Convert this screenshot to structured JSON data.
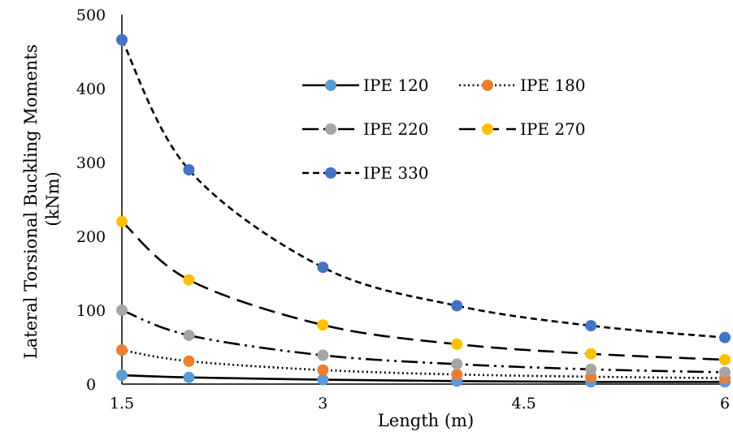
{
  "chart_data": {
    "type": "line",
    "title": "",
    "xlabel": "Length (m)",
    "ylabel": "Lateral Torsional Buckling Moments (kNm)",
    "xlim": [
      1.5,
      6
    ],
    "ylim": [
      0,
      500
    ],
    "x_ticks": [
      1.5,
      3,
      4.5,
      6
    ],
    "y_ticks": [
      0,
      100,
      200,
      300,
      400,
      500
    ],
    "grid": false,
    "legend_position": "upper-center",
    "series": [
      {
        "name": "IPE 120",
        "line_style": "solid",
        "marker_color": "#5B9BD5",
        "x": [
          1.5,
          2,
          3,
          4,
          5,
          6
        ],
        "y": [
          12,
          9,
          6,
          4,
          3,
          3
        ]
      },
      {
        "name": "IPE 180",
        "line_style": "dotted",
        "marker_color": "#ED7D31",
        "x": [
          1.5,
          2,
          3,
          4,
          5,
          6
        ],
        "y": [
          46,
          31,
          19,
          13,
          10,
          8
        ]
      },
      {
        "name": "IPE 220",
        "line_style": "long-dash-dot-dot",
        "marker_color": "#A5A5A5",
        "x": [
          1.5,
          2,
          3,
          4,
          5,
          6
        ],
        "y": [
          100,
          66,
          39,
          27,
          20,
          16
        ]
      },
      {
        "name": "IPE 270",
        "line_style": "long-dash",
        "marker_color": "#FFC000",
        "x": [
          1.5,
          2,
          3,
          4,
          5,
          6
        ],
        "y": [
          220,
          141,
          80,
          54,
          41,
          33
        ]
      },
      {
        "name": "IPE 330",
        "line_style": "short-dash",
        "marker_color": "#4472C4",
        "x": [
          1.5,
          2,
          3,
          4,
          5,
          6
        ],
        "y": [
          466,
          290,
          158,
          106,
          79,
          63
        ]
      }
    ]
  }
}
